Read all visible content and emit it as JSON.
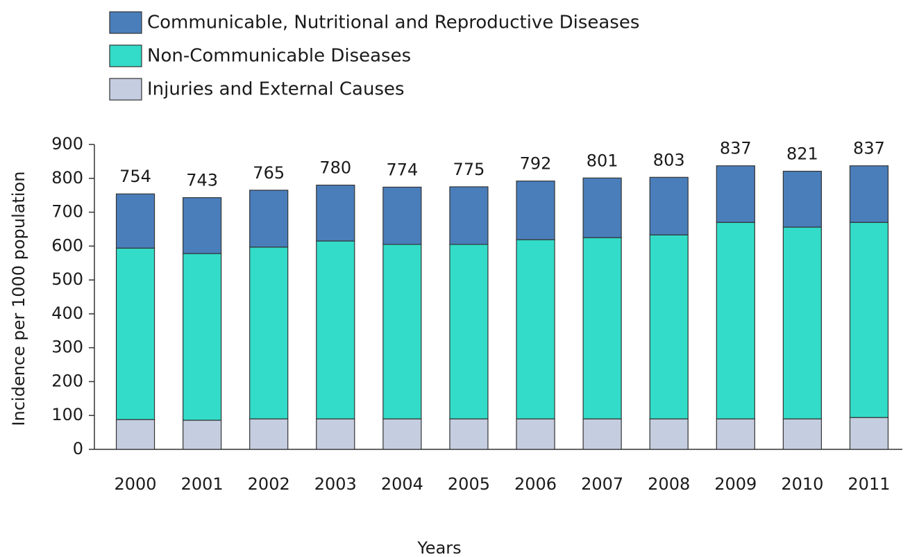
{
  "chart_data": {
    "type": "stacked_bar",
    "xlabel": "Years",
    "ylabel": "Incidence per 1000  population",
    "categories": [
      "2000",
      "2001",
      "2002",
      "2003",
      "2004",
      "2005",
      "2006",
      "2007",
      "2008",
      "2009",
      "2010",
      "2011"
    ],
    "series": [
      {
        "name": "Communicable, Nutritional and Reproductive Diseases",
        "color": "#4a7ebb",
        "values": [
          160,
          165,
          168,
          165,
          169,
          170,
          173,
          176,
          170,
          167,
          165,
          167
        ]
      },
      {
        "name": "Non-Communicable Diseases",
        "color": "#33dcc8",
        "values": [
          506,
          492,
          507,
          525,
          515,
          515,
          529,
          535,
          543,
          580,
          566,
          576
        ]
      },
      {
        "name": "Injuries and External Causes",
        "color": "#c5cde0",
        "values": [
          88,
          86,
          90,
          90,
          90,
          90,
          90,
          90,
          90,
          90,
          90,
          94
        ]
      }
    ],
    "totals": [
      754,
      743,
      765,
      780,
      774,
      775,
      792,
      801,
      803,
      837,
      821,
      837
    ],
    "ylim": [
      0,
      900
    ],
    "yticks": [
      0,
      100,
      200,
      300,
      400,
      500,
      600,
      700,
      800,
      900
    ],
    "grid": false
  }
}
